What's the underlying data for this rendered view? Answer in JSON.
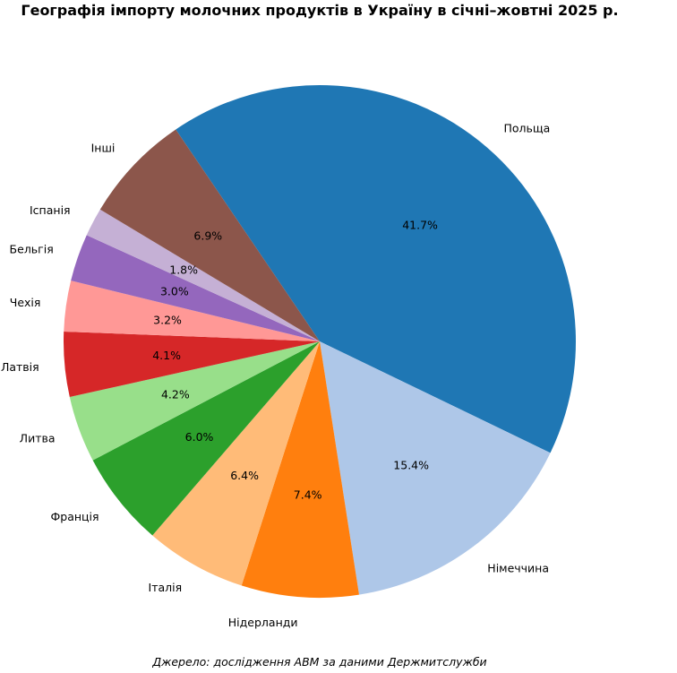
{
  "chart_data": {
    "type": "pie",
    "title": "Географія імпорту молочних продуктів в Україну в січні–жовтні 2025 р.",
    "source": "Джерело: дослідження АВМ за даними Держмитслужби",
    "start_angle_deg": 124.2,
    "direction": "clockwise",
    "slices": [
      {
        "label": "Польща",
        "value": 41.7,
        "pct_label": "41.7%",
        "color": "#1f77b4"
      },
      {
        "label": "Німеччина",
        "value": 15.4,
        "pct_label": "15.4%",
        "color": "#aec7e8"
      },
      {
        "label": "Нідерланди",
        "value": 7.4,
        "pct_label": "7.4%",
        "color": "#ff7f0e"
      },
      {
        "label": "Італія",
        "value": 6.4,
        "pct_label": "6.4%",
        "color": "#ffbb78"
      },
      {
        "label": "Франція",
        "value": 6.0,
        "pct_label": "6.0%",
        "color": "#2ca02c"
      },
      {
        "label": "Литва",
        "value": 4.2,
        "pct_label": "4.2%",
        "color": "#98df8a"
      },
      {
        "label": "Латвія",
        "value": 4.1,
        "pct_label": "4.1%",
        "color": "#d62728"
      },
      {
        "label": "Чехія",
        "value": 3.2,
        "pct_label": "3.2%",
        "color": "#ff9896"
      },
      {
        "label": "Бельгія",
        "value": 3.0,
        "pct_label": "3.0%",
        "color": "#9467bd"
      },
      {
        "label": "Іспанія",
        "value": 1.8,
        "pct_label": "1.8%",
        "color": "#c5b0d5"
      },
      {
        "label": "Інші",
        "value": 6.9,
        "pct_label": "6.9%",
        "color": "#8c564b"
      }
    ]
  }
}
